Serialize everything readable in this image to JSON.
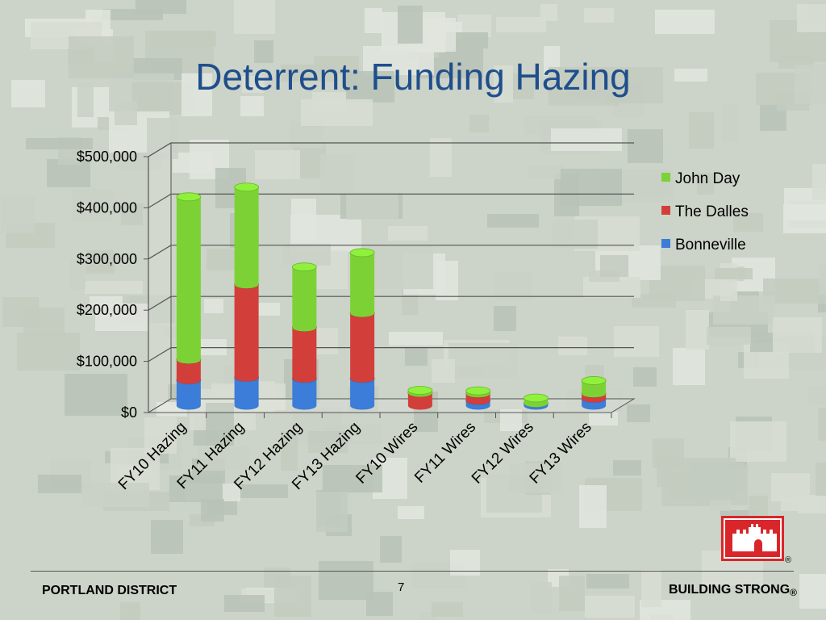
{
  "slide": {
    "title": "Deterrent: Funding Hazing",
    "page_number": "7",
    "footer_left": "PORTLAND DISTRICT",
    "footer_right": "BUILDING STRONG",
    "footer_right_mark": "®",
    "logo_mark": "®"
  },
  "logo": {
    "icon": "castle-icon",
    "color": "#d9262a"
  },
  "chart_data": {
    "type": "bar",
    "stacked": true,
    "three_d": true,
    "title": "",
    "xlabel": "",
    "ylabel": "",
    "ylim": [
      0,
      500000
    ],
    "yticks": [
      0,
      100000,
      200000,
      300000,
      400000,
      500000
    ],
    "ytick_labels": [
      "$0",
      "$100,000",
      "$200,000",
      "$300,000",
      "$400,000",
      "$500,000"
    ],
    "categories": [
      "FY10 Hazing",
      "FY11 Hazing",
      "FY12 Hazing",
      "FY13 Hazing",
      "FY10 Wires",
      "FY11 Wires",
      "FY12 Wires",
      "FY13 Wires"
    ],
    "series": [
      {
        "name": "Bonneville",
        "color": "#3b7dd8",
        "values": [
          50000,
          55000,
          53000,
          53000,
          0,
          10000,
          5000,
          14000
        ]
      },
      {
        "name": "The Dalles",
        "color": "#d23f3a",
        "values": [
          40000,
          182000,
          100000,
          128000,
          25000,
          14000,
          0,
          10000
        ]
      },
      {
        "name": "John Day",
        "color": "#7cd234",
        "values": [
          318000,
          190000,
          118000,
          118000,
          5000,
          5000,
          10000,
          25000
        ]
      }
    ],
    "legend_order": [
      "John Day",
      "The Dalles",
      "Bonneville"
    ],
    "legend": "right",
    "grid": true
  }
}
